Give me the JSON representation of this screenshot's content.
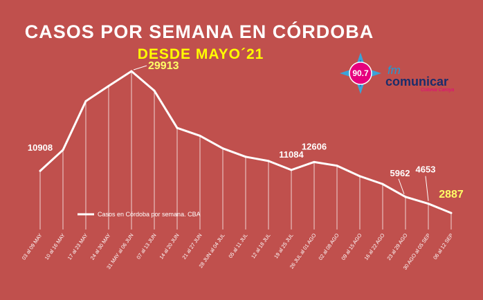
{
  "chart_data": {
    "type": "line",
    "title": "CASOS POR SEMANA EN CÓRDOBA",
    "subtitle": "DESDE MAYO´21",
    "categories": [
      "03 al 09 MAY",
      "10 al 16 MAY",
      "17 al 23 MAY",
      "24 al 30 MAY",
      "31 MAY al 06 JUN",
      "07 al 13 JUN",
      "14 al 20 JUN",
      "21 al 27 JUN",
      "28 JUN al 04 JUL",
      "05 al 11 JUL",
      "12 al 18 JUL",
      "19 al 25 JUL",
      "26 JUL al 01 AGO",
      "02 al 08 AGO",
      "09 al 15 AGO",
      "16 al 22 AGO",
      "23 al 29 AGO",
      "30 AGO al 05 SEP",
      "06 al 12 SEP"
    ],
    "series": [
      {
        "name": "Casos en Córdoba por semana. CBA",
        "color": "#ffffff",
        "values": [
          10908,
          14900,
          24200,
          27100,
          29913,
          26200,
          19100,
          17600,
          15200,
          13600,
          12800,
          11084,
          12606,
          11900,
          9900,
          8400,
          5962,
          4653,
          2887
        ]
      }
    ],
    "labeled_points": [
      {
        "index": 0,
        "text": "10908"
      },
      {
        "index": 4,
        "text": "29913",
        "highlight": true
      },
      {
        "index": 11,
        "text": "11084"
      },
      {
        "index": 12,
        "text": "12606"
      },
      {
        "index": 16,
        "text": "5962"
      },
      {
        "index": 17,
        "text": "4653"
      },
      {
        "index": 18,
        "text": "2887",
        "highlight": true
      }
    ],
    "ylim": [
      0,
      34000
    ],
    "grid": false,
    "legend": "left",
    "colors": {
      "background": "#c0504d",
      "line": "#ffffff",
      "highlight_label": "#ffff66"
    }
  },
  "logo": {
    "frequency": "90.7",
    "fm": "fm",
    "name": "comunicar",
    "tagline": "Colonia Caroya"
  }
}
